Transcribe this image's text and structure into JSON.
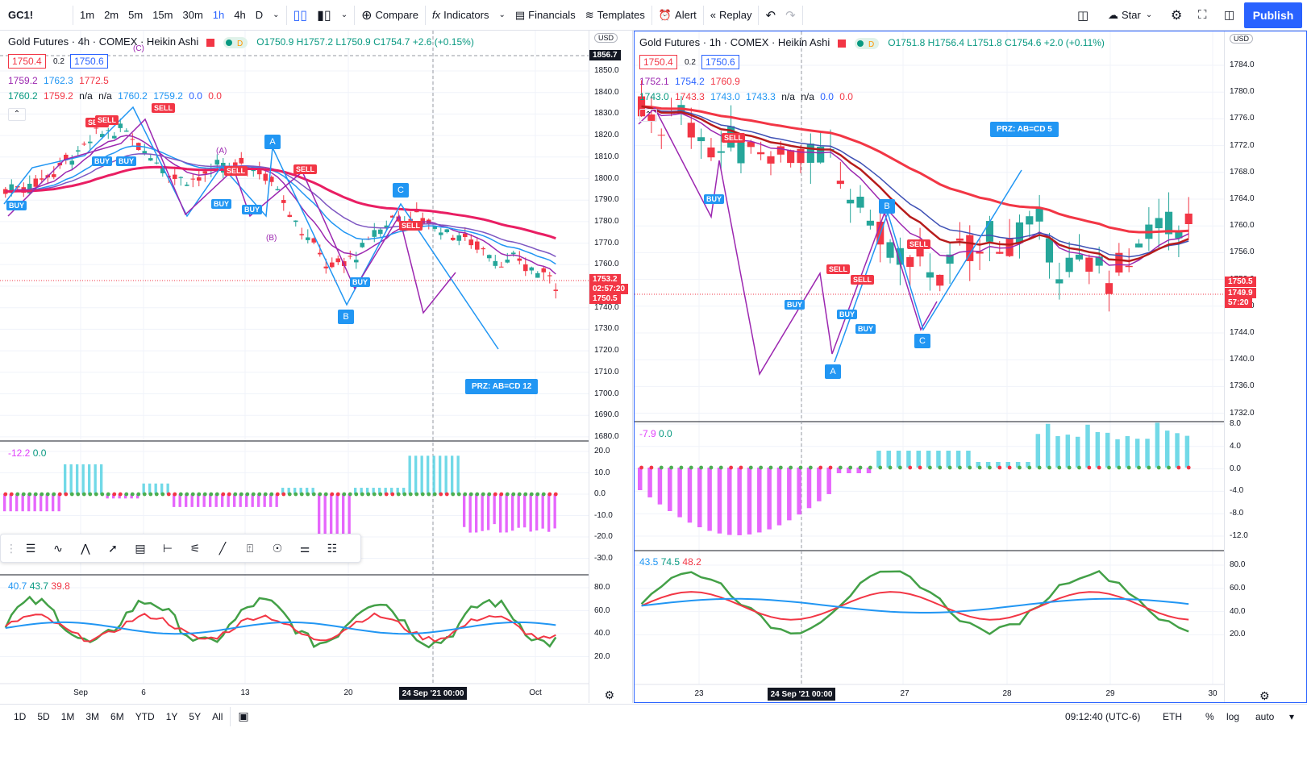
{
  "toolbar": {
    "symbol": "GC1!",
    "timeframes": [
      "1m",
      "2m",
      "5m",
      "15m",
      "30m",
      "1h",
      "4h",
      "D"
    ],
    "active_timeframe": "1h",
    "compare": "Compare",
    "indicators": "Indicators",
    "financials": "Financials",
    "templates": "Templates",
    "alert": "Alert",
    "replay": "Replay",
    "star": "Star",
    "publish": "Publish"
  },
  "left_chart": {
    "title": "Gold Futures · 4h · COMEX · Heikin Ashi",
    "ohlc": "O1750.9 H1757.2 L1750.9 C1754.7 +2.6 (+0.15%)",
    "bid": "1750.4",
    "spread": "0.2",
    "ask": "1750.6",
    "ma_line1": [
      "1759.2",
      "1762.3",
      "1772.5"
    ],
    "ma_line2": [
      "1760.2",
      "1759.2",
      "n/a",
      "n/a",
      "1760.2",
      "1759.2",
      "0.0",
      "0.0"
    ],
    "currency": "USD",
    "crosshair_price": "1856.7",
    "current_price": "1753.2",
    "countdown": "02:57:20",
    "last_price": "1750.5",
    "price_ticks": [
      "1850.0",
      "1840.0",
      "1830.0",
      "1820.0",
      "1810.0",
      "1800.0",
      "1790.0",
      "1780.0",
      "1770.0",
      "1760.0",
      "1750.0",
      "1740.0",
      "1730.0",
      "1720.0",
      "1710.0",
      "1700.0",
      "1690.0",
      "1680.0"
    ],
    "prz": "PRZ: AB=CD 12",
    "points": {
      "a": "A",
      "b": "B",
      "c": "C"
    },
    "wave_labels": {
      "a": "(A)",
      "b": "(B)",
      "c": "(C)"
    },
    "osc_legend": [
      "-12.2",
      "0.0"
    ],
    "osc_ticks": [
      "20.0",
      "10.0",
      "0.0",
      "-10.0",
      "-20.0",
      "-30.0"
    ],
    "rsi_legend": [
      "40.7",
      "43.7",
      "39.8"
    ],
    "rsi_ticks": [
      "80.0",
      "60.0",
      "40.0",
      "20.0"
    ],
    "x_labels": [
      "Sep",
      "6",
      "13",
      "20",
      "Oct"
    ],
    "crosshair_date": "24 Sep '21",
    "crosshair_time": "00:00"
  },
  "right_chart": {
    "title": "Gold Futures · 1h · COMEX · Heikin Ashi",
    "ohlc": "O1751.8 H1756.4 L1751.8 C1754.6 +2.0 (+0.11%)",
    "bid": "1750.4",
    "spread": "0.2",
    "ask": "1750.6",
    "ma_line1": [
      "1752.1",
      "1754.2",
      "1760.9"
    ],
    "ma_line2": [
      "1743.0",
      "1743.3",
      "1743.0",
      "1743.3",
      "n/a",
      "n/a",
      "0.0",
      "0.0"
    ],
    "currency": "USD",
    "last_price": "1750.5",
    "current_price": "1749.9",
    "countdown": "57:20",
    "price_ticks": [
      "1784.0",
      "1780.0",
      "1776.0",
      "1772.0",
      "1768.0",
      "1764.0",
      "1760.0",
      "1756.0",
      "1752.0",
      "1748.0",
      "1744.0",
      "1740.0",
      "1736.0",
      "1732.0"
    ],
    "prz": "PRZ: AB=CD 5",
    "points": {
      "a": "A",
      "b": "B",
      "c": "C"
    },
    "osc_legend": [
      "-7.9",
      "0.0"
    ],
    "osc_ticks": [
      "8.0",
      "4.0",
      "0.0",
      "-4.0",
      "-8.0",
      "-12.0"
    ],
    "rsi_legend": [
      "43.5",
      "74.5",
      "48.2"
    ],
    "rsi_ticks": [
      "80.0",
      "60.0",
      "40.0",
      "20.0"
    ],
    "x_labels": [
      "23",
      "27",
      "28",
      "29",
      "30"
    ],
    "crosshair_date": "24 Sep '21",
    "crosshair_time": "00:00"
  },
  "signals": {
    "buy": "BUY",
    "sell": "SELL"
  },
  "bottom": {
    "ranges": [
      "1D",
      "5D",
      "1M",
      "3M",
      "6M",
      "YTD",
      "1Y",
      "5Y",
      "All"
    ],
    "time": "09:12:40 (UTC-6)",
    "session": "ETH",
    "percent": "%",
    "log": "log",
    "auto": "auto"
  },
  "colors": {
    "accent": "#2962ff",
    "red": "#f23645",
    "green": "#089981",
    "purple": "#9c27b0",
    "blue": "#2196f3",
    "pink": "#e91e63"
  }
}
